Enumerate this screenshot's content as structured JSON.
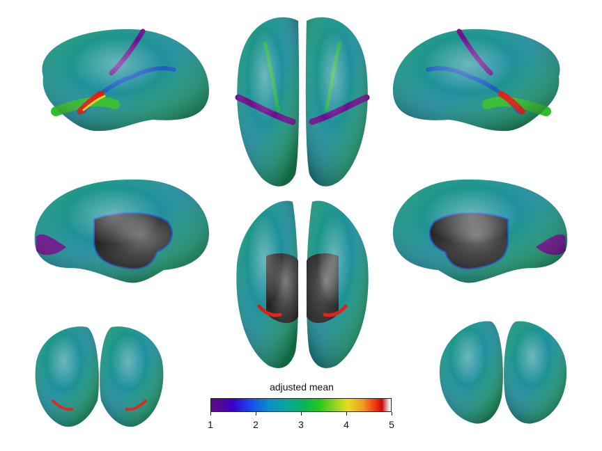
{
  "colorbar": {
    "title": "adjusted mean",
    "ticks": [
      {
        "value": 1,
        "label": "1"
      },
      {
        "value": 2,
        "label": "2"
      },
      {
        "value": 3,
        "label": "3"
      },
      {
        "value": 4,
        "label": "4"
      },
      {
        "value": 5,
        "label": "5"
      }
    ],
    "range": [
      1,
      5
    ],
    "colormap": "purple-blue-teal-green-yellow-red-white"
  },
  "colors": {
    "surface_base": "#1f8f86",
    "sulcus_blue": "#1e50c8",
    "gyrus_green": "#2fbf2a",
    "hot_red": "#e01a10",
    "purple": "#6a108e",
    "medial_wall": "#3a3a3a"
  },
  "views": [
    {
      "name": "left-lateral-view"
    },
    {
      "name": "dorsal-view"
    },
    {
      "name": "right-lateral-view"
    },
    {
      "name": "left-medial-view"
    },
    {
      "name": "ventral-view"
    },
    {
      "name": "right-medial-view"
    },
    {
      "name": "anterior-view"
    },
    {
      "name": "posterior-view"
    }
  ]
}
